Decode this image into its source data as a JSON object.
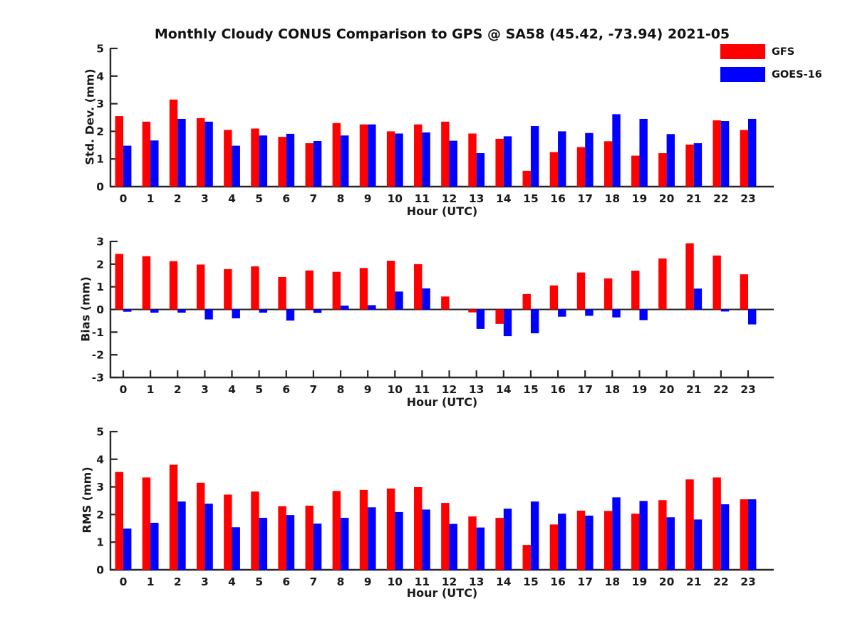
{
  "title": "Monthly Cloudy CONUS Comparison to GPS @ SA58 (45.42, -73.94) 2021-05",
  "legend": {
    "items": [
      {
        "label": "GFS",
        "color": "#ff0000",
        "swatch_name": "gfs-legend-swatch"
      },
      {
        "label": "GOES-16",
        "color": "#0000ff",
        "swatch_name": "goes16-legend-swatch"
      }
    ]
  },
  "colors": {
    "gfs": "#ff0000",
    "goes16": "#0000ff",
    "axis": "#262626",
    "text": "#1a1a1a"
  },
  "chart_data": [
    {
      "type": "bar",
      "title": "Monthly Cloudy CONUS Comparison to GPS @ SA58 (45.42, -73.94) 2021-05",
      "ylabel": "Std. Dev. (mm)",
      "xlabel": "Hour (UTC)",
      "categories": [
        "0",
        "1",
        "2",
        "3",
        "4",
        "5",
        "6",
        "7",
        "8",
        "9",
        "10",
        "11",
        "12",
        "13",
        "14",
        "15",
        "16",
        "17",
        "18",
        "19",
        "20",
        "21",
        "22",
        "23"
      ],
      "ylim": [
        0,
        5
      ],
      "yticks": [
        0,
        1,
        2,
        3,
        4,
        5
      ],
      "grid": false,
      "legend_position": "upper-right-outside",
      "series": [
        {
          "name": "GFS",
          "color": "#ff0000",
          "values": [
            2.55,
            2.35,
            3.15,
            2.48,
            2.05,
            2.1,
            1.8,
            1.57,
            2.3,
            2.25,
            2.0,
            2.25,
            2.35,
            1.92,
            1.73,
            0.57,
            1.25,
            1.43,
            1.64,
            1.12,
            1.21,
            1.52,
            2.4,
            2.05
          ]
        },
        {
          "name": "GOES-16",
          "color": "#0000ff",
          "values": [
            1.48,
            1.67,
            2.45,
            2.35,
            1.48,
            1.85,
            1.91,
            1.65,
            1.85,
            2.25,
            1.92,
            1.96,
            1.66,
            1.21,
            1.82,
            2.19,
            2.0,
            1.94,
            2.62,
            2.45,
            1.9,
            1.57,
            2.37,
            2.45
          ]
        }
      ]
    },
    {
      "type": "bar",
      "title": "",
      "ylabel": "Bias (mm)",
      "xlabel": "Hour (UTC)",
      "categories": [
        "0",
        "1",
        "2",
        "3",
        "4",
        "5",
        "6",
        "7",
        "8",
        "9",
        "10",
        "11",
        "12",
        "13",
        "14",
        "15",
        "16",
        "17",
        "18",
        "19",
        "20",
        "21",
        "22",
        "23"
      ],
      "ylim": [
        -3,
        3
      ],
      "yticks": [
        -3,
        -2,
        -1,
        0,
        1,
        2,
        3
      ],
      "grid": false,
      "zero_line": true,
      "series": [
        {
          "name": "GFS",
          "color": "#ff0000",
          "values": [
            2.45,
            2.35,
            2.13,
            1.98,
            1.78,
            1.9,
            1.43,
            1.72,
            1.66,
            1.83,
            2.15,
            2.0,
            0.57,
            -0.13,
            -0.64,
            0.68,
            1.06,
            1.63,
            1.37,
            1.71,
            2.25,
            2.92,
            2.38,
            1.55
          ]
        },
        {
          "name": "GOES-16",
          "color": "#0000ff",
          "values": [
            -0.1,
            -0.14,
            -0.14,
            -0.44,
            -0.39,
            -0.14,
            -0.49,
            -0.15,
            0.17,
            0.19,
            0.79,
            0.93,
            0,
            -0.86,
            -1.18,
            -1.05,
            -0.32,
            -0.28,
            -0.35,
            -0.47,
            0,
            0.92,
            -0.09,
            -0.66
          ]
        }
      ]
    },
    {
      "type": "bar",
      "title": "",
      "ylabel": "RMS (mm)",
      "xlabel": "Hour (UTC)",
      "categories": [
        "0",
        "1",
        "2",
        "3",
        "4",
        "5",
        "6",
        "7",
        "8",
        "9",
        "10",
        "11",
        "12",
        "13",
        "14",
        "15",
        "16",
        "17",
        "18",
        "19",
        "20",
        "21",
        "22",
        "23"
      ],
      "ylim": [
        0,
        5
      ],
      "yticks": [
        0,
        1,
        2,
        3,
        4,
        5
      ],
      "grid": false,
      "series": [
        {
          "name": "GFS",
          "color": "#ff0000",
          "values": [
            3.54,
            3.34,
            3.8,
            3.15,
            2.72,
            2.83,
            2.3,
            2.32,
            2.85,
            2.89,
            2.94,
            2.99,
            2.42,
            1.93,
            1.88,
            0.9,
            1.64,
            2.14,
            2.13,
            2.03,
            2.52,
            3.27,
            3.34,
            2.55
          ]
        },
        {
          "name": "GOES-16",
          "color": "#0000ff",
          "values": [
            1.49,
            1.7,
            2.47,
            2.39,
            1.54,
            1.88,
            1.98,
            1.67,
            1.88,
            2.26,
            2.09,
            2.18,
            1.66,
            1.53,
            2.21,
            2.47,
            2.03,
            1.96,
            2.62,
            2.49,
            1.9,
            1.82,
            2.37,
            2.55
          ]
        }
      ]
    }
  ]
}
